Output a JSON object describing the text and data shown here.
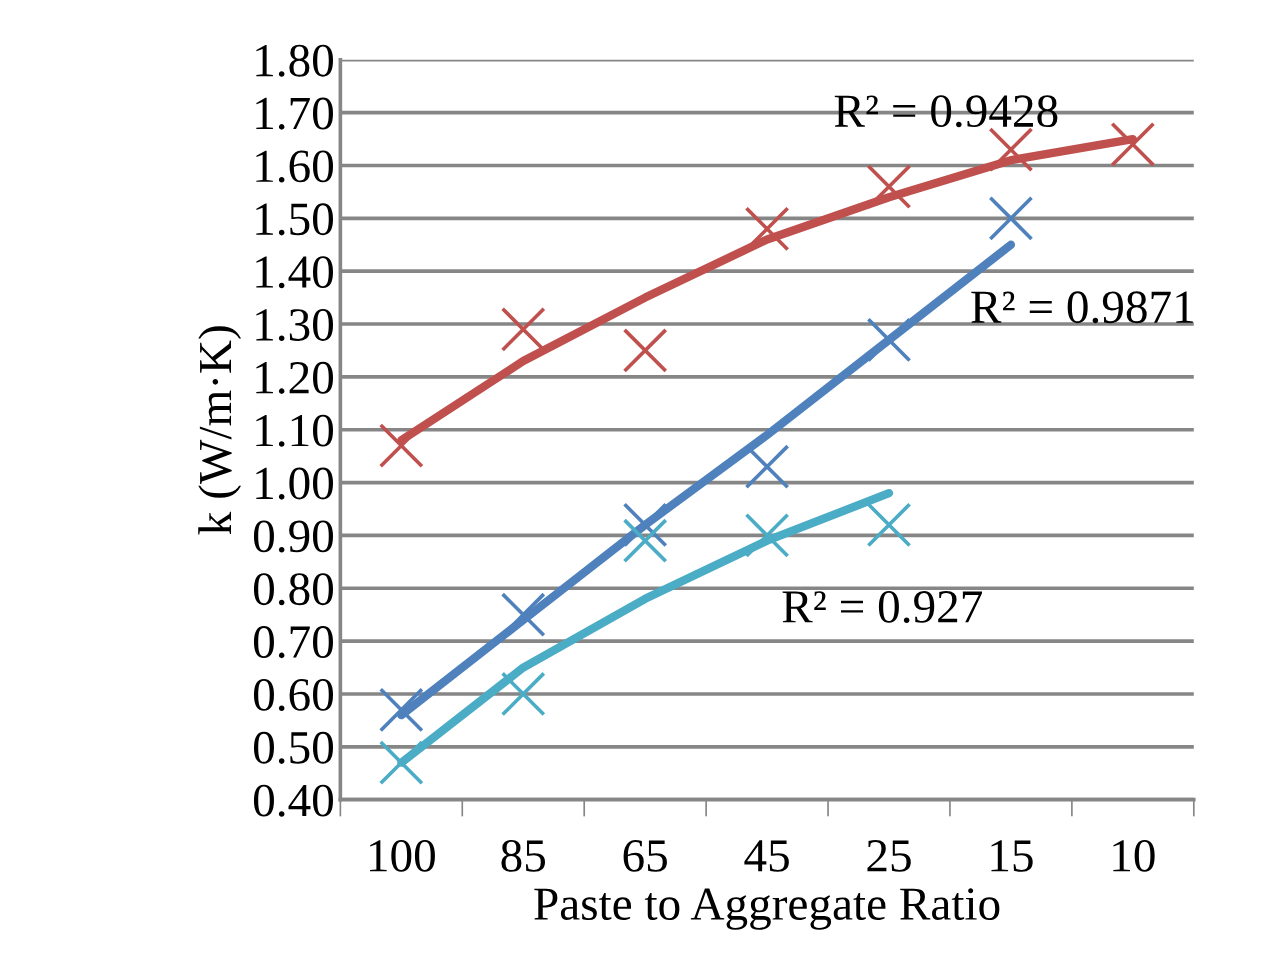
{
  "chart_data": {
    "type": "scatter",
    "xlabel": "Paste to Aggregate Ratio",
    "ylabel": "k (W/m·K)",
    "categories": [
      "100",
      "85",
      "65",
      "45",
      "25",
      "15",
      "10"
    ],
    "ylim": [
      0.4,
      1.8
    ],
    "yticks": [
      {
        "value": 0.4,
        "label": "0.40"
      },
      {
        "value": 0.5,
        "label": "0.50"
      },
      {
        "value": 0.6,
        "label": "0.60"
      },
      {
        "value": 0.7,
        "label": "0.70"
      },
      {
        "value": 0.8,
        "label": "0.80"
      },
      {
        "value": 0.9,
        "label": "0.90"
      },
      {
        "value": 1.0,
        "label": "1.00"
      },
      {
        "value": 1.1,
        "label": "1.10"
      },
      {
        "value": 1.2,
        "label": "1.20"
      },
      {
        "value": 1.3,
        "label": "1.30"
      },
      {
        "value": 1.4,
        "label": "1.40"
      },
      {
        "value": 1.5,
        "label": "1.50"
      },
      {
        "value": 1.6,
        "label": "1.60"
      },
      {
        "value": 1.7,
        "label": "1.70"
      },
      {
        "value": 1.8,
        "label": "1.80"
      }
    ],
    "grid": "y",
    "series": [
      {
        "type": "line",
        "color": "#c0504d",
        "values": [
          1.08,
          1.23,
          1.35,
          1.46,
          1.54,
          1.61,
          1.65
        ]
      },
      {
        "type": "line",
        "color": "#4f81bd",
        "values": [
          0.56,
          0.74,
          0.92,
          1.09,
          1.27,
          1.45,
          null
        ]
      },
      {
        "type": "line",
        "color": "#4bacc6",
        "values": [
          0.47,
          0.65,
          0.78,
          0.89,
          0.98,
          null,
          null
        ]
      },
      {
        "marker": "cross",
        "color": "#c0504d",
        "values": [
          1.07,
          1.29,
          1.25,
          1.48,
          1.56,
          1.63,
          1.64
        ]
      },
      {
        "marker": "cross",
        "color": "#4f81bd",
        "values": [
          0.57,
          0.75,
          0.92,
          1.03,
          1.27,
          1.5,
          null
        ]
      },
      {
        "marker": "cross",
        "color": "#4bacc6",
        "values": [
          0.47,
          0.6,
          0.89,
          0.9,
          0.92,
          null,
          null
        ]
      }
    ],
    "annotations": [
      "R² = 0.9428",
      "R² = 0.9871",
      "R² = 0.927"
    ]
  }
}
